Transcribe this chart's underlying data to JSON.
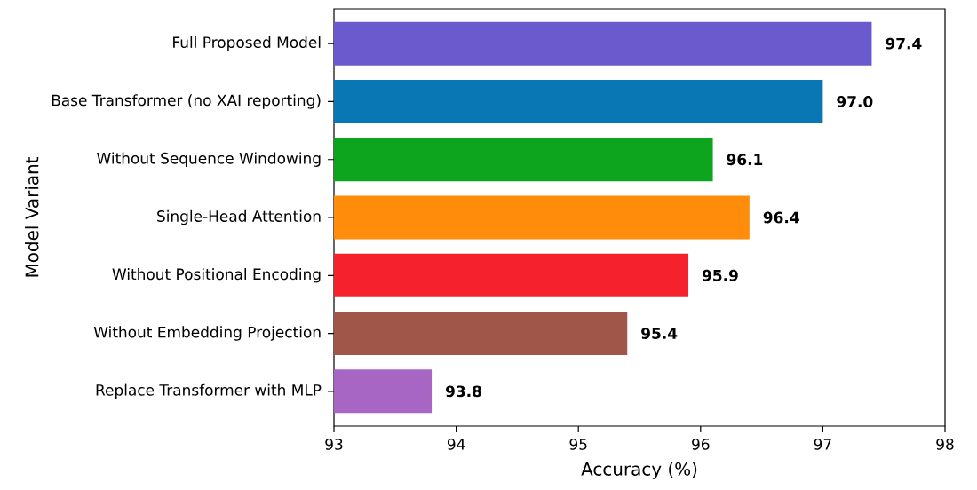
{
  "chart_data": {
    "type": "bar",
    "orientation": "horizontal",
    "xlabel": "Accuracy (%)",
    "ylabel": "Model Variant",
    "categories": [
      "Full Proposed Model",
      "Base Transformer (no XAI reporting)",
      "Without Sequence Windowing",
      "Single-Head Attention",
      "Without Positional Encoding",
      "Without Embedding Projection",
      "Replace Transformer with MLP"
    ],
    "values": [
      97.4,
      97.0,
      96.1,
      96.4,
      95.9,
      95.4,
      93.8
    ],
    "value_labels": [
      "97.4",
      "97.0",
      "96.1",
      "96.4",
      "95.9",
      "95.4",
      "93.8"
    ],
    "colors": [
      "#6a5acd",
      "#0a77b5",
      "#0ea51e",
      "#ff8c0a",
      "#f5222d",
      "#a0574a",
      "#a866c4"
    ],
    "xlim": [
      93,
      98
    ],
    "xticks": [
      93,
      94,
      95,
      96,
      97,
      98
    ],
    "grid": false
  }
}
